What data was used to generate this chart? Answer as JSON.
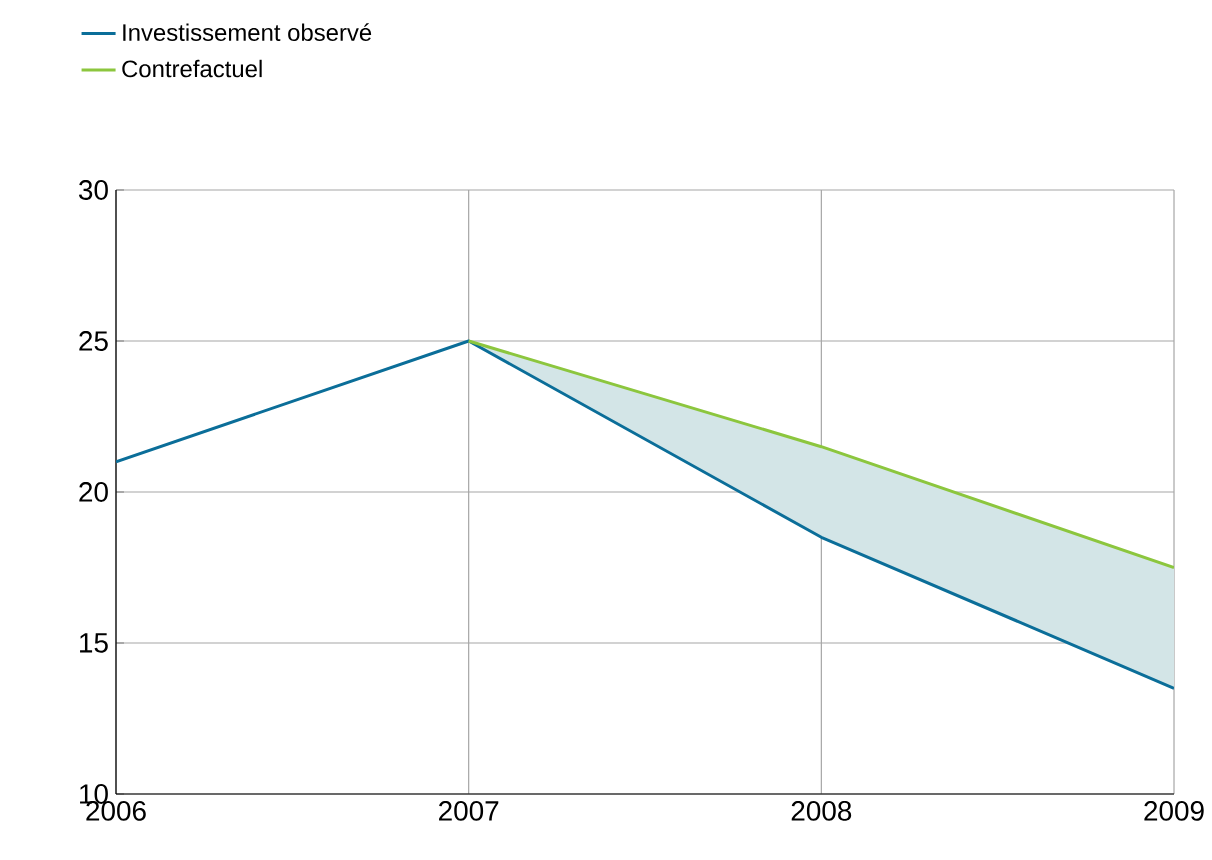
{
  "chart_data": {
    "type": "line",
    "x": [
      2006,
      2007,
      2008,
      2009
    ],
    "xlim": [
      2006,
      2009
    ],
    "xticks": [
      2006,
      2007,
      2008,
      2009
    ],
    "ylim": [
      10,
      30
    ],
    "yticks": [
      10,
      15,
      20,
      25,
      30
    ],
    "grid": true,
    "legend": "top left",
    "marker": "none",
    "line_style": "solid",
    "series": [
      {
        "name": "Investissement observé",
        "color": "#0b6e99",
        "values": [
          21,
          25,
          18.5,
          13.5
        ]
      },
      {
        "name": "Contrefactuel",
        "color": "#8cc63e",
        "values": [
          null,
          25,
          21.5,
          17.5
        ],
        "lower": [
          null,
          25,
          18.5,
          13.5
        ],
        "upper": [
          null,
          25,
          21.5,
          17.5
        ]
      }
    ]
  }
}
